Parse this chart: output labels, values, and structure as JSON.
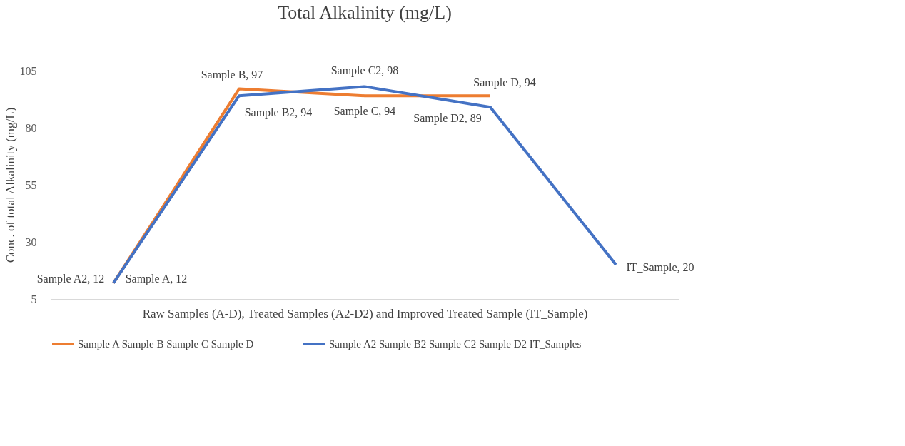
{
  "chart_data": {
    "type": "line",
    "title": "Total Alkalinity  (mg/L)",
    "xlabel": "Raw Samples (A-D), Treated Samples (A2-D2) and Improved Treated Sample (IT_Sample)",
    "ylabel": "Conc. of total Alkalinity (mg/L)",
    "categories": [
      null,
      null,
      null,
      null,
      null
    ],
    "series": [
      {
        "name": "Sample A Sample B Sample C Sample D",
        "color": "#ed7d31",
        "values": [
          12,
          97,
          94,
          94,
          null
        ],
        "value_labels": [
          "Sample A, 12",
          "Sample B, 97",
          "Sample C, 94",
          "Sample D, 94",
          null
        ]
      },
      {
        "name": "Sample A2 Sample B2 Sample C2 Sample D2 IT_Samples",
        "color": "#4472c4",
        "values": [
          12,
          94,
          98,
          89,
          20
        ],
        "value_labels": [
          "Sample A2, 12",
          "Sample B2, 94",
          "Sample C2, 98",
          "Sample D2, 89",
          "IT_Sample, 20"
        ]
      }
    ],
    "ylim": [
      5,
      105
    ],
    "yticks": [
      5,
      30,
      55,
      80,
      105
    ],
    "grid": false,
    "legend": "bottom",
    "tick_labels": "y",
    "marker": "none",
    "line_style": "solid"
  }
}
